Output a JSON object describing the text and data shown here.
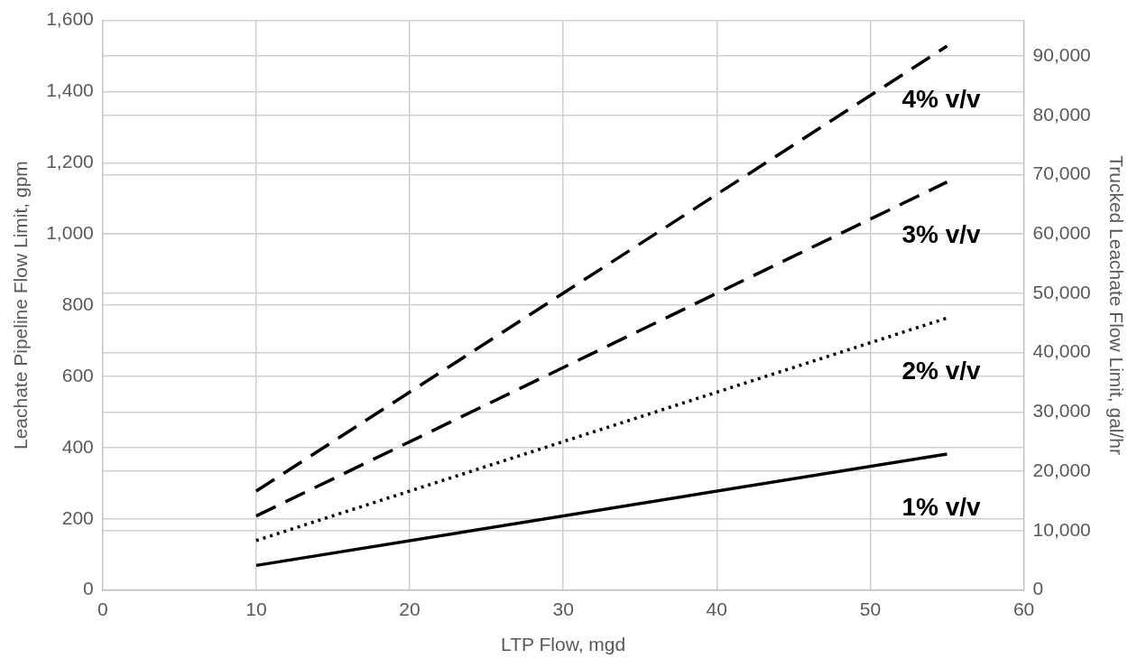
{
  "chart_data": {
    "type": "line",
    "xlabel": "LTP Flow, mgd",
    "ylabel": "Leachate Pipeline Flow Limit, gpm",
    "y2label": "Trucked Leachate Flow Limit, gal/hr",
    "x": [
      10,
      55
    ],
    "series": [
      {
        "name": "4% v/v",
        "color": "#000000",
        "values": [
          278,
          1528
        ],
        "line_style": "dashed"
      },
      {
        "name": "3% v/v",
        "color": "#000000",
        "values": [
          208,
          1146
        ],
        "line_style": "dashed"
      },
      {
        "name": "2% v/v",
        "color": "#000000",
        "values": [
          139,
          764
        ],
        "line_style": "dotted"
      },
      {
        "name": "1% v/v",
        "color": "#000000",
        "values": [
          69,
          382
        ],
        "line_style": "solid"
      }
    ],
    "xlim": [
      0,
      60
    ],
    "xticks": [
      0,
      10,
      20,
      30,
      40,
      50,
      60
    ],
    "ylim": [
      0,
      1600
    ],
    "yticks": [
      0,
      200,
      400,
      600,
      800,
      {
        "value": 1000,
        "label": "1,000"
      },
      {
        "value": 1200,
        "label": "1,200"
      },
      {
        "value": 1400,
        "label": "1,400"
      },
      {
        "value": 1600,
        "label": "1,600"
      }
    ],
    "y2lim": [
      0,
      96000
    ],
    "y2ticks": [
      0,
      {
        "value": 10000,
        "label": "10,000"
      },
      {
        "value": 20000,
        "label": "20,000"
      },
      {
        "value": 30000,
        "label": "30,000"
      },
      {
        "value": 40000,
        "label": "40,000"
      },
      {
        "value": 50000,
        "label": "50,000"
      },
      {
        "value": 60000,
        "label": "60,000"
      },
      {
        "value": 70000,
        "label": "70,000"
      },
      {
        "value": 80000,
        "label": "80,000"
      },
      {
        "value": 90000,
        "label": "90,000"
      }
    ],
    "grid": true,
    "legend": false,
    "marker": "none"
  }
}
